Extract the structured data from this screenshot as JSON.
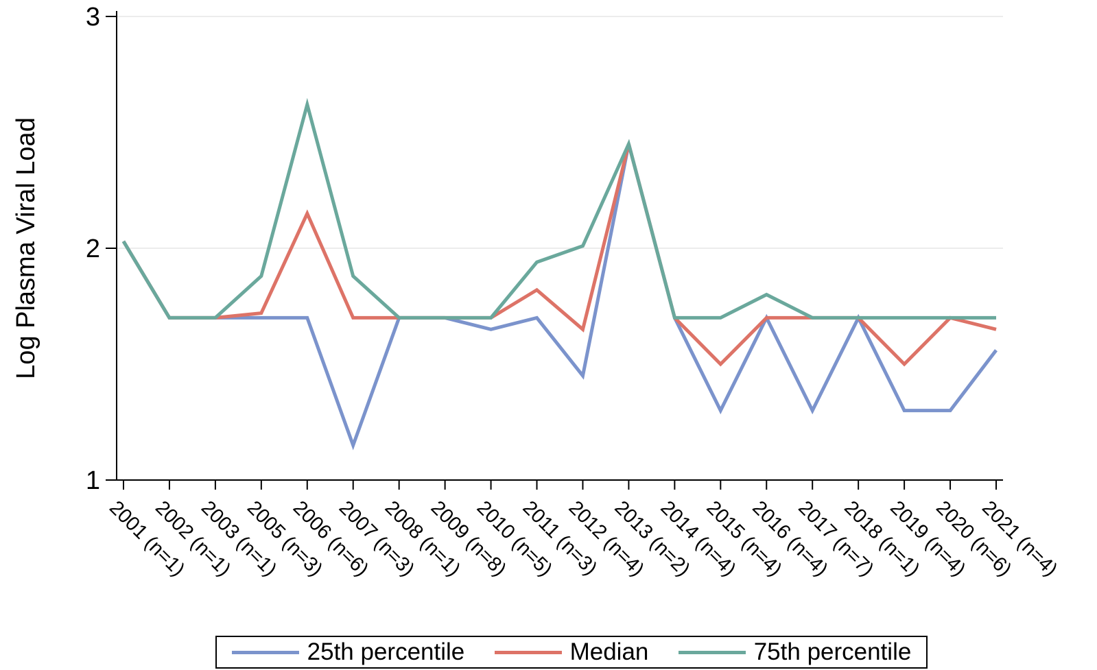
{
  "chart_data": {
    "type": "line",
    "title": "",
    "xlabel": "",
    "ylabel": "Log Plasma Viral Load",
    "ylim": [
      1,
      3
    ],
    "yticks": [
      1,
      2,
      3
    ],
    "grid": true,
    "legend_position": "bottom",
    "categories": [
      "2001 (n=1)",
      "2002 (n=1)",
      "2003 (n=1)",
      "2005 (n=3)",
      "2006 (n=6)",
      "2007 (n=3)",
      "2008 (n=1)",
      "2009 (n=8)",
      "2010 (n=5)",
      "2011 (n=3)",
      "2012 (n=4)",
      "2013 (n=2)",
      "2014 (n=4)",
      "2015 (n=4)",
      "2016 (n=4)",
      "2017 (n=7)",
      "2018 (n=1)",
      "2019 (n=4)",
      "2020 (n=6)",
      "2021 (n=4)"
    ],
    "series": [
      {
        "name": "25th percentile",
        "color": "#7b93cc",
        "values": [
          2.03,
          1.7,
          1.7,
          1.7,
          1.7,
          1.15,
          1.7,
          1.7,
          1.65,
          1.7,
          1.45,
          2.45,
          1.7,
          1.3,
          1.7,
          1.3,
          1.7,
          1.3,
          1.3,
          1.56
        ]
      },
      {
        "name": "Median",
        "color": "#dd7367",
        "values": [
          2.03,
          1.7,
          1.7,
          1.72,
          2.15,
          1.7,
          1.7,
          1.7,
          1.7,
          1.82,
          1.65,
          2.45,
          1.7,
          1.5,
          1.7,
          1.7,
          1.7,
          1.5,
          1.7,
          1.65
        ]
      },
      {
        "name": "75th percentile",
        "color": "#6aa89c",
        "values": [
          2.03,
          1.7,
          1.7,
          1.88,
          2.62,
          1.88,
          1.7,
          1.7,
          1.7,
          1.94,
          2.01,
          2.45,
          1.7,
          1.7,
          1.8,
          1.7,
          1.7,
          1.7,
          1.7,
          1.7
        ]
      }
    ]
  }
}
